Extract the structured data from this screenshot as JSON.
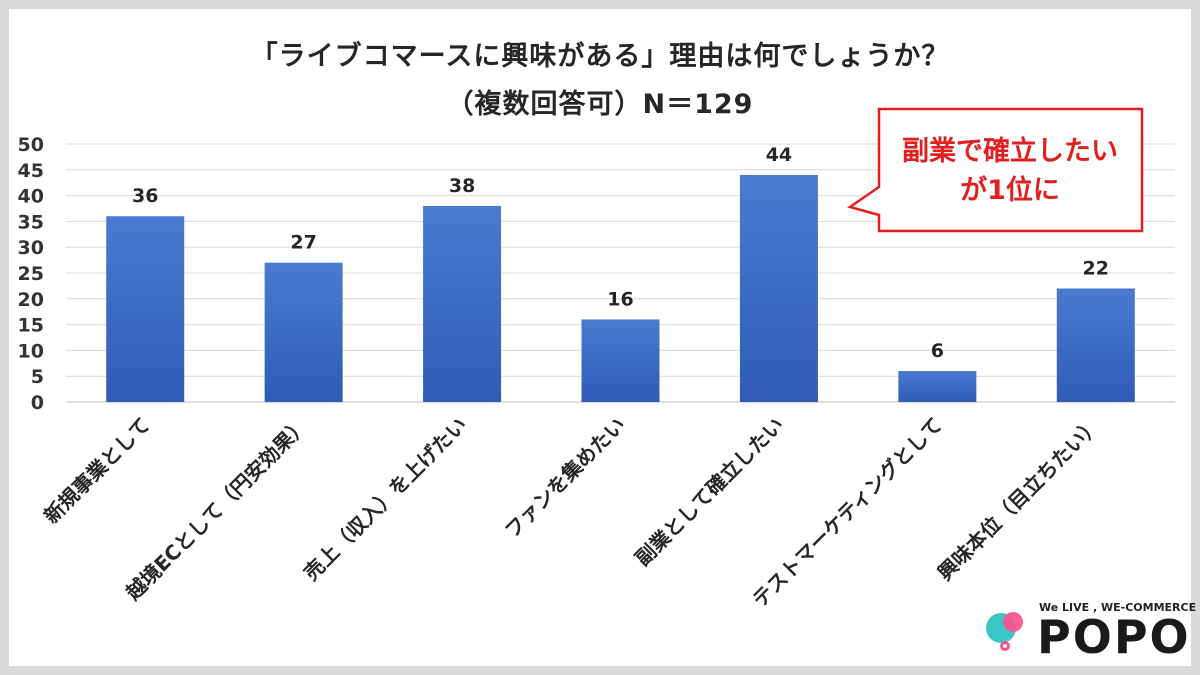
{
  "chart_data": {
    "type": "bar",
    "title": "「ライブコマースに興味がある」理由は何でしょうか？",
    "subtitle": "（複数回答可）N＝129",
    "categories": [
      "新規事業として",
      "越境ECとして（円安効果）",
      "売上（収入）を上げたい",
      "ファンを集めたい",
      "副業として確立したい",
      "テストマーケティングとして",
      "興味本位（目立ちたい）"
    ],
    "values": [
      36,
      27,
      38,
      16,
      44,
      6,
      22
    ],
    "ylim": [
      0,
      50
    ],
    "yticks": [
      0,
      5,
      10,
      15,
      20,
      25,
      30,
      35,
      40,
      45,
      50
    ],
    "grid": true,
    "legend": "none",
    "bar_color": "#4472c4",
    "annotation": {
      "line1": "副業で確立したい",
      "line2": "が1位に",
      "color": "#e41e1e"
    }
  },
  "logo": {
    "tagline": "We LIVE , WE-COMMERCE",
    "wordmark": "POPO"
  }
}
